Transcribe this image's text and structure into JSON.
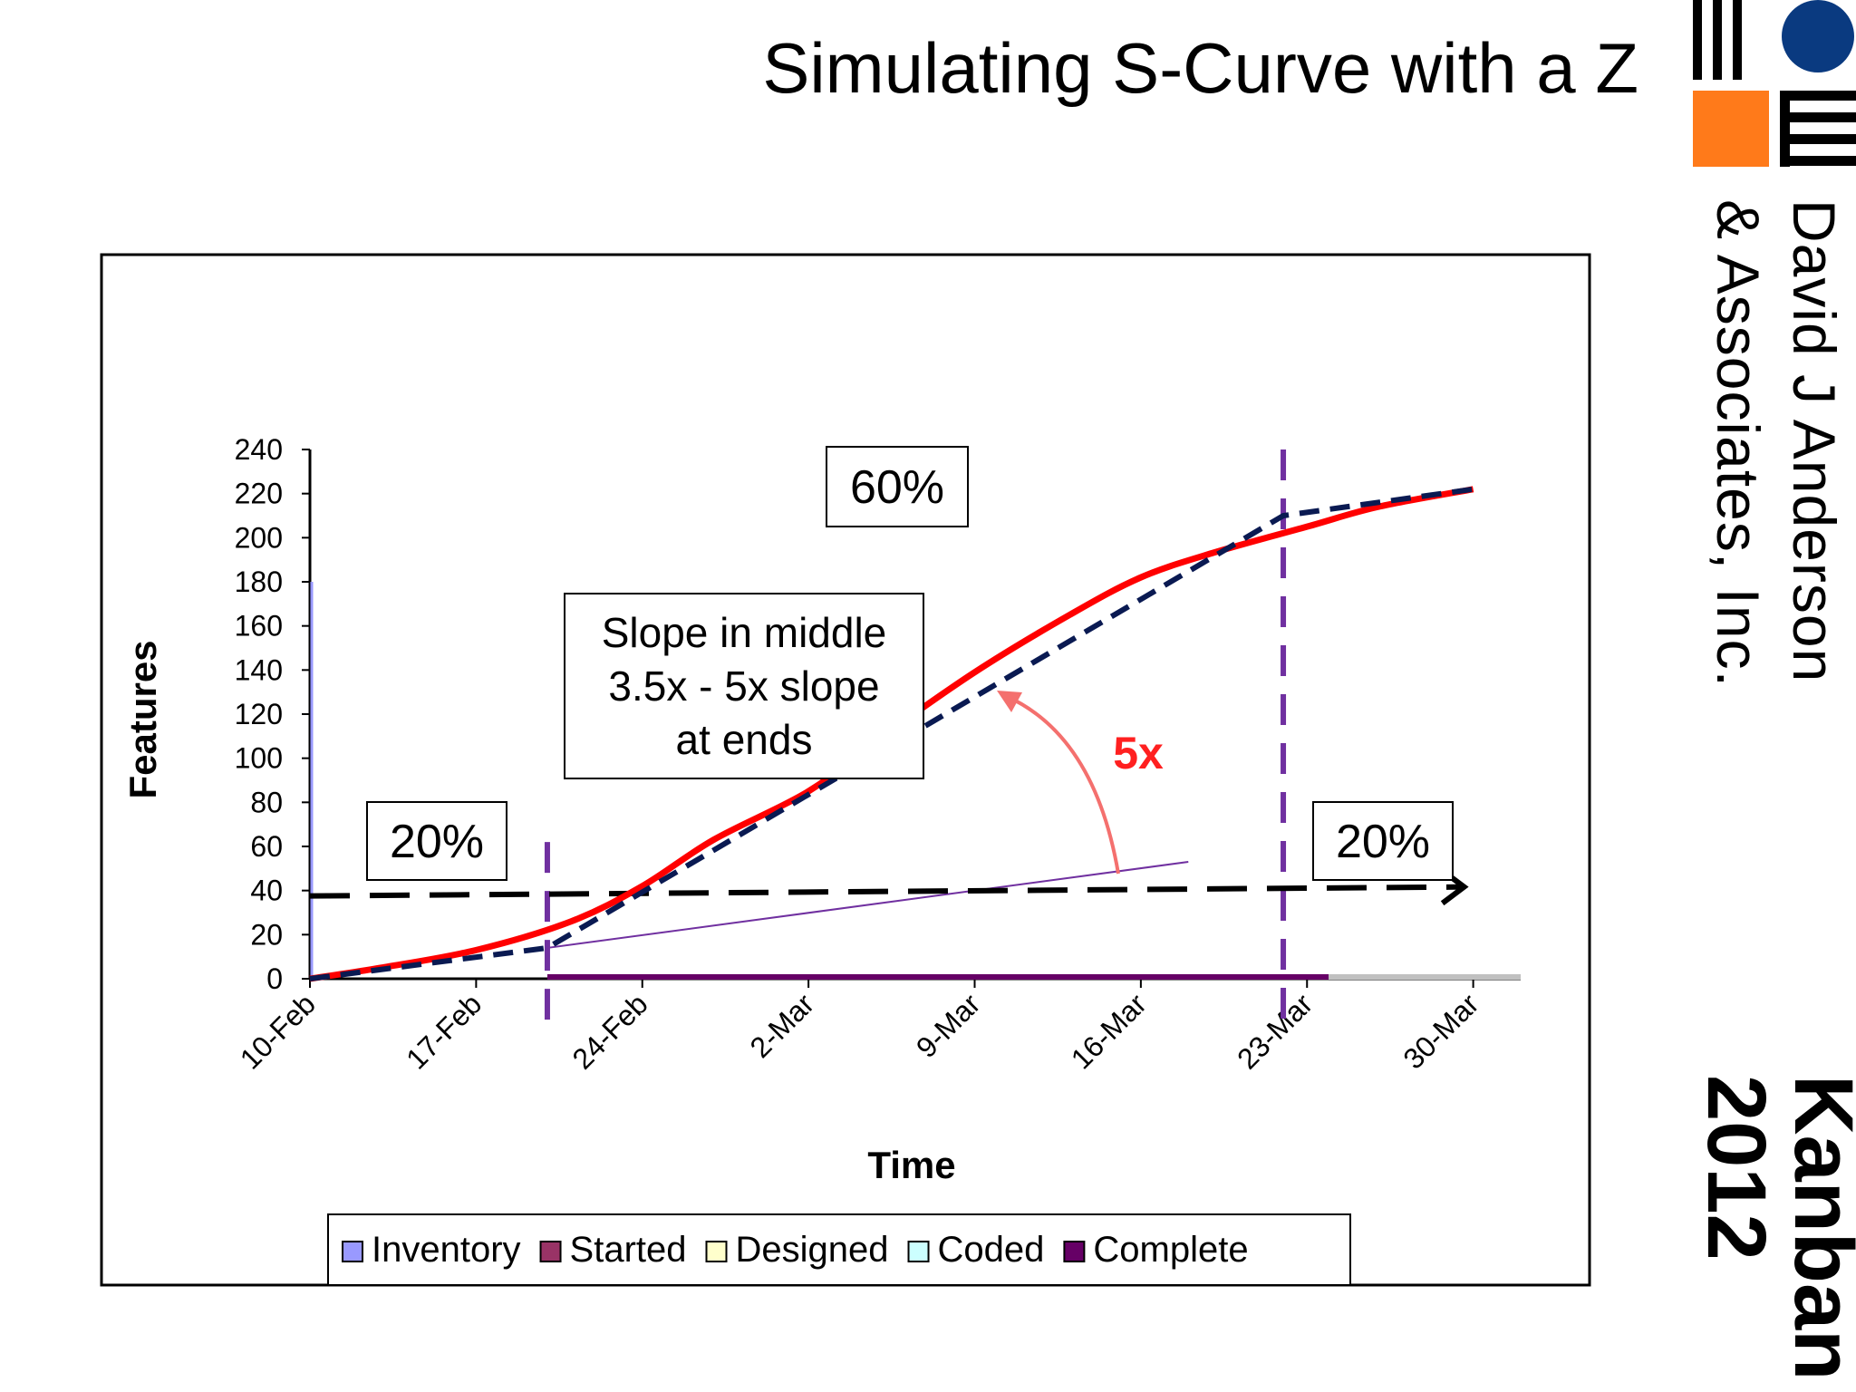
{
  "slide": {
    "title": "Simulating S-Curve with a Z",
    "company_text": "David J Anderson\n& Associates, Inc.",
    "event_text": "Kanban\n2012"
  },
  "colors": {
    "s_curve": "#ff0000",
    "z_curve": "#0a1a52",
    "guide_lines": "#7030a0",
    "arrow_5x": "#f4706e",
    "label_5x": "#ff2020",
    "logo_blue": "#0a3a80",
    "logo_orange": "#ff7a1a"
  },
  "chart_data": {
    "type": "line",
    "xlabel": "Time",
    "ylabel": "Features",
    "xlim": [
      "10-Feb",
      "1-Apr"
    ],
    "ylim": [
      0,
      240
    ],
    "x_ticks": [
      "10-Feb",
      "17-Feb",
      "24-Feb",
      "2-Mar",
      "9-Mar",
      "16-Mar",
      "23-Mar",
      "30-Mar"
    ],
    "y_ticks": [
      "0",
      "20",
      "40",
      "60",
      "80",
      "100",
      "120",
      "140",
      "160",
      "180",
      "200",
      "220",
      "240"
    ],
    "grid": false,
    "legend": {
      "position": "bottom",
      "entries": [
        {
          "name": "Inventory",
          "color": "#9999ff"
        },
        {
          "name": "Started",
          "color": "#993366"
        },
        {
          "name": "Designed",
          "color": "#ffffcc"
        },
        {
          "name": "Coded",
          "color": "#ccffff"
        },
        {
          "name": "Complete",
          "color": "#660066"
        }
      ]
    },
    "series": [
      {
        "style": "s-curve",
        "x": [
          "10-Feb",
          "13-Feb",
          "17-Feb",
          "21-Feb",
          "24-Feb",
          "27-Feb",
          "2-Mar",
          "5-Mar",
          "9-Mar",
          "13-Mar",
          "16-Mar",
          "19-Mar",
          "23-Mar",
          "26-Mar",
          "30-Mar"
        ],
        "y": [
          0,
          5,
          13,
          26,
          42,
          63,
          85,
          109,
          139,
          165,
          182,
          193,
          205,
          214,
          222
        ]
      },
      {
        "style": "z-curve",
        "x": [
          "10-Feb",
          "20-Feb",
          "22-Mar",
          "30-Mar"
        ],
        "y": [
          0,
          14,
          210,
          222
        ]
      }
    ],
    "annotations": {
      "pct_left": "20%",
      "pct_middle": "60%",
      "pct_right": "20%",
      "slope_note": [
        "Slope in middle",
        "3.5x - 5x slope",
        "at ends"
      ],
      "ratio_label": "5x"
    },
    "guide_lines": {
      "vertical_dates": [
        "20-Feb",
        "22-Mar"
      ],
      "thin_slope_line": {
        "x": [
          "20-Feb",
          "18-Mar"
        ],
        "y": [
          14,
          53
        ]
      },
      "horizontal_arrow_y": 40
    }
  }
}
